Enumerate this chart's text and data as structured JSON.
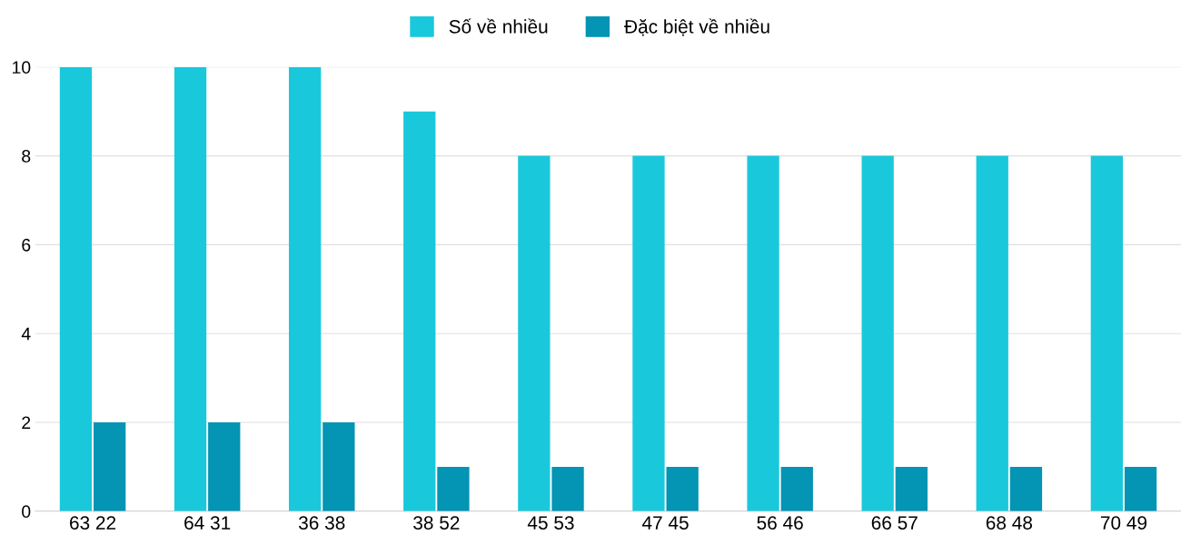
{
  "chart_data": {
    "type": "bar",
    "categories": [
      "63 22",
      "64 31",
      "36 38",
      "38 52",
      "45 53",
      "47 45",
      "56 46",
      "66 57",
      "68 48",
      "70 49"
    ],
    "series": [
      {
        "name": "Số về nhiều",
        "color": "#1ac8db",
        "values": [
          10,
          10,
          10,
          9,
          8,
          8,
          8,
          8,
          8,
          8
        ]
      },
      {
        "name": "Đặc biệt về nhiều",
        "color": "#0494b4",
        "values": [
          2,
          2,
          2,
          1,
          1,
          1,
          1,
          1,
          1,
          1
        ]
      }
    ],
    "ylim": [
      0,
      10
    ],
    "yticks": [
      0,
      2,
      4,
      6,
      8,
      10
    ],
    "grid": "y",
    "legend": "top"
  }
}
